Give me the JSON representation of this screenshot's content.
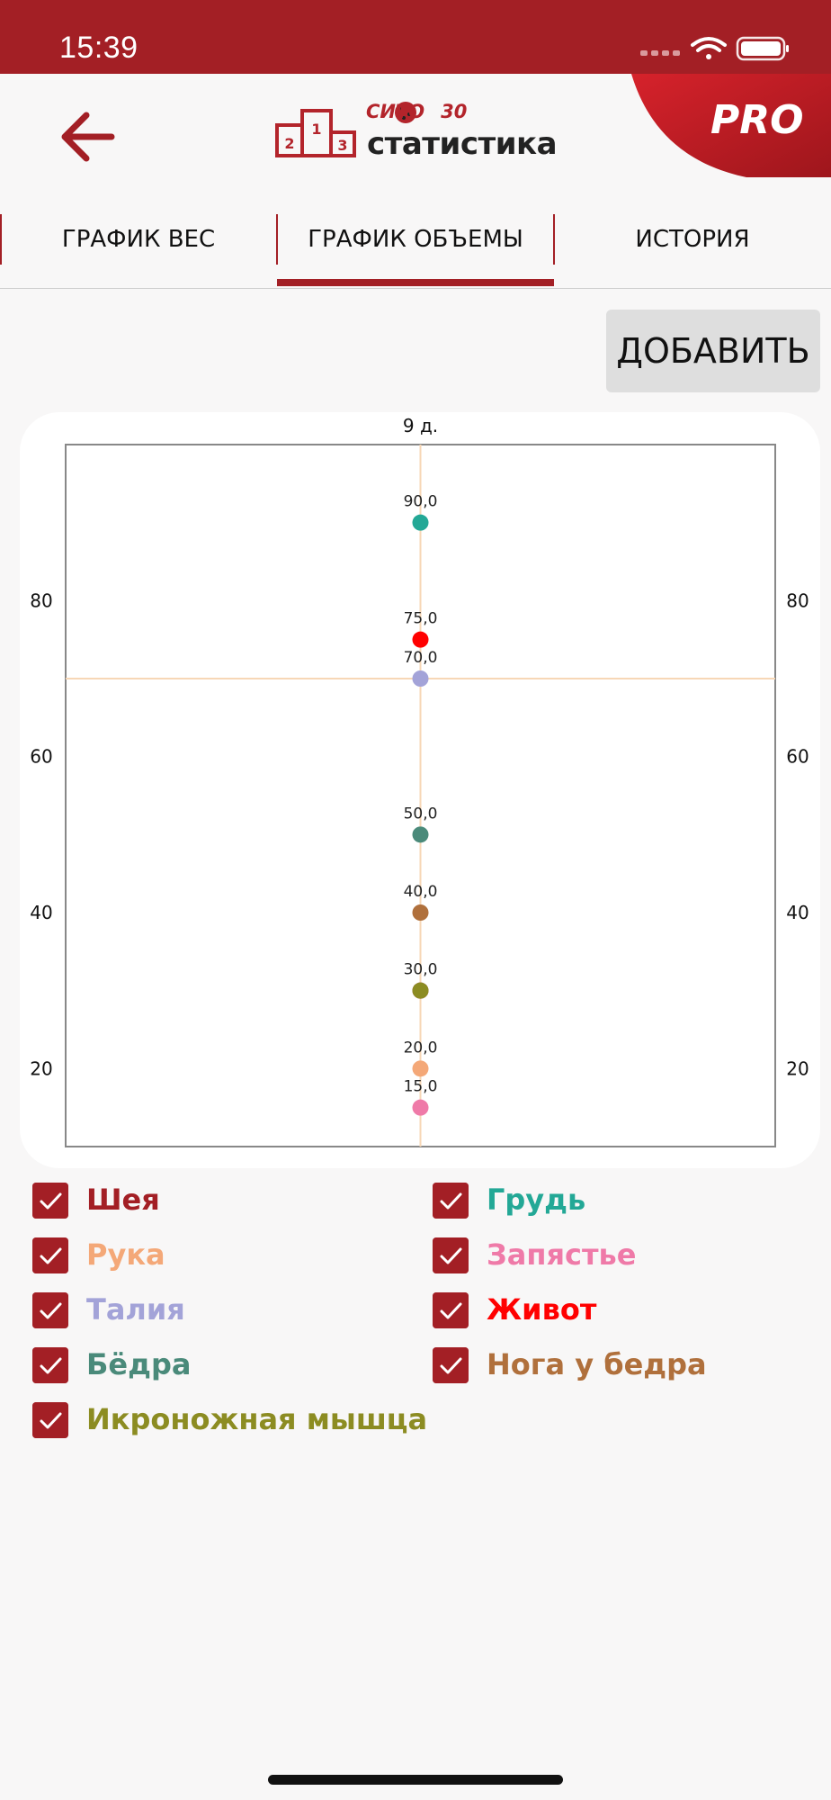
{
  "status_bar": {
    "time": "15:39"
  },
  "header": {
    "logo_sito": "СИТО",
    "logo_30": "30",
    "logo_title": "статистика",
    "pro_label": "PRO"
  },
  "tabs": [
    {
      "label": "ГРАФИК ВЕС",
      "active": false
    },
    {
      "label": "ГРАФИК ОБЪЕМЫ",
      "active": true
    },
    {
      "label": "ИСТОРИЯ",
      "active": false
    }
  ],
  "add_button": {
    "label": "ДОБАВИТЬ"
  },
  "colors": {
    "accent": "#a31f25",
    "background": "#f8f7f7",
    "grid": "#f7d7b6",
    "axis_border": "#888888"
  },
  "chart_data": {
    "type": "scatter",
    "title": "9 д.",
    "x": [
      "9 д."
    ],
    "ylim": [
      10,
      100
    ],
    "yticks": [
      20,
      40,
      60,
      80
    ],
    "crosshair_y": 70,
    "series": [
      {
        "name": "Шея",
        "color": "#a31f25",
        "values": [
          30
        ]
      },
      {
        "name": "Грудь",
        "color": "#23a896",
        "values": [
          90
        ]
      },
      {
        "name": "Рука",
        "color": "#f4a878",
        "values": [
          20
        ]
      },
      {
        "name": "Запястье",
        "color": "#ef7aa8",
        "values": [
          15
        ]
      },
      {
        "name": "Талия",
        "color": "#a3a3d8",
        "values": [
          70
        ]
      },
      {
        "name": "Живот",
        "color": "#ff0000",
        "values": [
          75
        ]
      },
      {
        "name": "Бёдра",
        "color": "#4a8a7a",
        "values": [
          50
        ]
      },
      {
        "name": "Нога у бедра",
        "color": "#b0703c",
        "values": [
          40
        ]
      },
      {
        "name": "Икроножная мышца",
        "color": "#8c8c22",
        "values": [
          30
        ]
      }
    ],
    "point_labels": [
      "90,0",
      "75,0",
      "70,0",
      "50,0",
      "40,0",
      "30,0",
      "20,0",
      "15,0"
    ]
  }
}
